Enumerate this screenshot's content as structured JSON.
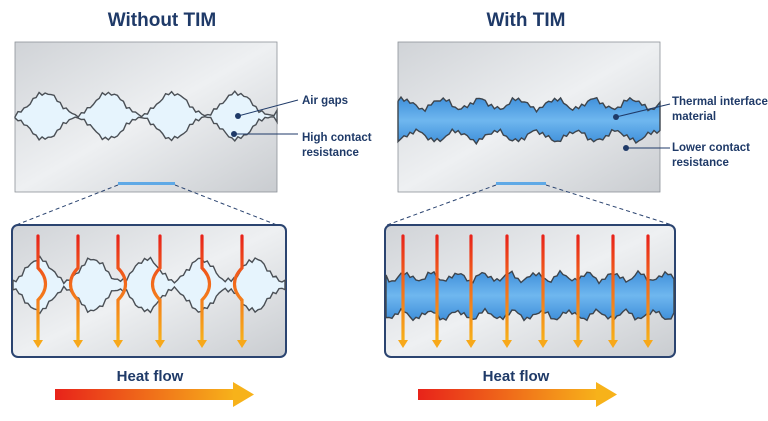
{
  "left": {
    "title": "Without TIM",
    "callouts": [
      "Air gaps",
      "High contact",
      "resistance"
    ],
    "heat_flow_label": "Heat flow"
  },
  "right": {
    "title": "With TIM",
    "callouts": [
      "Thermal interface",
      "material",
      "Lower contact",
      "resistance"
    ],
    "heat_flow_label": "Heat flow"
  },
  "colors": {
    "title": "#1f3a68",
    "panel_border": "#2b4470",
    "air_gap": "#e6f4fd",
    "tim_fill": "#5fa9e6",
    "arrow_start": "#e8231a",
    "arrow_end": "#f7b21a"
  }
}
